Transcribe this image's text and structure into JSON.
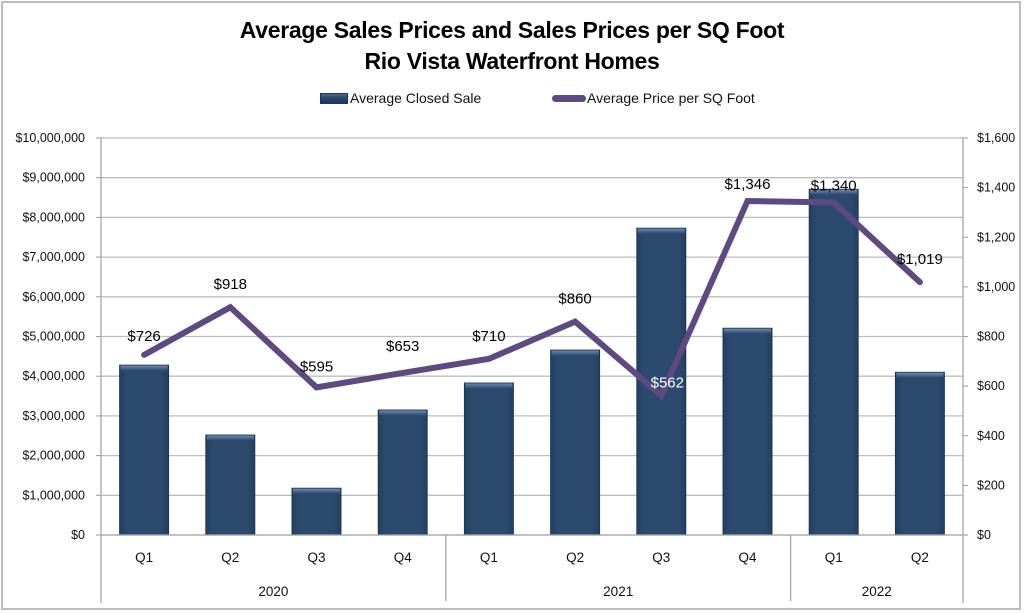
{
  "chart_data": {
    "type": "bar",
    "title": "Average Sales Prices and Sales Prices per SQ Foot",
    "subtitle": "Rio Vista Waterfront Homes",
    "legend_position": "top",
    "grid": true,
    "categories": [
      "Q1",
      "Q2",
      "Q3",
      "Q4",
      "Q1",
      "Q2",
      "Q3",
      "Q4",
      "Q1",
      "Q2"
    ],
    "groups": [
      {
        "label": "2020",
        "count": 4
      },
      {
        "label": "2021",
        "count": 4
      },
      {
        "label": "2022",
        "count": 2
      }
    ],
    "series": [
      {
        "name": "Average Closed Sale",
        "type": "bar",
        "axis": "left",
        "color": "#2b4a6e",
        "values": [
          4280000,
          2520000,
          1180000,
          3150000,
          3830000,
          4660000,
          7730000,
          5210000,
          8710000,
          4100000
        ]
      },
      {
        "name": "Average Price per SQ Foot",
        "type": "line",
        "axis": "right",
        "color": "#5e4a80",
        "values": [
          726,
          918,
          595,
          653,
          710,
          860,
          562,
          1346,
          1340,
          1019
        ],
        "data_labels": [
          "$726",
          "$918",
          "$595",
          "$653",
          "$710",
          "$860",
          "$562",
          "$1,346",
          "$1,340",
          "$1,019"
        ]
      }
    ],
    "y_left": {
      "range": [
        0,
        10000000
      ],
      "ticks": [
        0,
        1000000,
        2000000,
        3000000,
        4000000,
        5000000,
        6000000,
        7000000,
        8000000,
        9000000,
        10000000
      ],
      "tick_labels": [
        "$0",
        "$1,000,000",
        "$2,000,000",
        "$3,000,000",
        "$4,000,000",
        "$5,000,000",
        "$6,000,000",
        "$7,000,000",
        "$8,000,000",
        "$9,000,000",
        "$10,000,000"
      ]
    },
    "y_right": {
      "range": [
        0,
        1600
      ],
      "ticks": [
        0,
        200,
        400,
        600,
        800,
        1000,
        1200,
        1400,
        1600
      ],
      "tick_labels": [
        "$0",
        "$200",
        "$400",
        "$600",
        "$800",
        "$1,000",
        "$1,200",
        "$1,400",
        "$1,600"
      ]
    },
    "xlabel": "",
    "ylabel": ""
  }
}
